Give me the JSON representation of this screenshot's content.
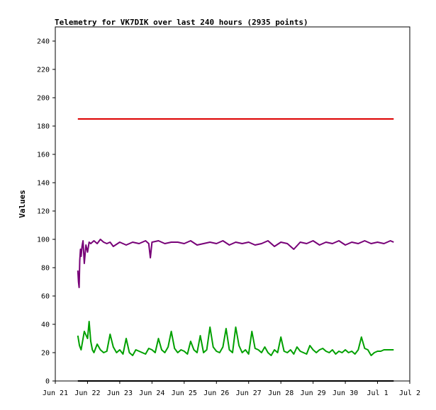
{
  "chart_data": {
    "type": "line",
    "title": "Telemetry for VK7DIK over last 240 hours (2935 points)",
    "xlabel": "",
    "ylabel": "Values",
    "ylim": [
      0,
      250
    ],
    "yticks": [
      0,
      20,
      40,
      60,
      80,
      100,
      120,
      140,
      160,
      180,
      200,
      220,
      240
    ],
    "xlim": [
      "Jun 21",
      "Jul 2"
    ],
    "xtick_labels": [
      "Jun 21",
      "Jun 22",
      "Jun 23",
      "Jun 24",
      "Jun 25",
      "Jun 26",
      "Jun 27",
      "Jun 28",
      "Jun 29",
      "Jun 30",
      "Jul 1",
      "Jul 2"
    ],
    "grid": false,
    "x_units": "days since Jun 21 00:00",
    "series": [
      {
        "color": "#dd0000",
        "x": [
          0.7,
          10.5
        ],
        "values": [
          185,
          185
        ]
      },
      {
        "color": "#770077",
        "x": [
          0.7,
          0.72,
          0.74,
          0.76,
          0.78,
          0.8,
          0.83,
          0.86,
          0.9,
          0.95,
          1.0,
          1.05,
          1.1,
          1.2,
          1.3,
          1.4,
          1.5,
          1.6,
          1.7,
          1.8,
          2.0,
          2.2,
          2.4,
          2.6,
          2.8,
          2.9,
          2.95,
          3.0,
          3.2,
          3.4,
          3.6,
          3.8,
          4.0,
          4.2,
          4.4,
          4.6,
          4.8,
          5.0,
          5.2,
          5.4,
          5.6,
          5.8,
          6.0,
          6.2,
          6.4,
          6.6,
          6.8,
          7.0,
          7.2,
          7.4,
          7.6,
          7.8,
          8.0,
          8.2,
          8.4,
          8.6,
          8.8,
          9.0,
          9.2,
          9.4,
          9.6,
          9.8,
          10.0,
          10.2,
          10.4,
          10.5
        ],
        "values": [
          78,
          70,
          66,
          85,
          93,
          88,
          95,
          99,
          83,
          96,
          91,
          98,
          97,
          99,
          97,
          100,
          98,
          97,
          98,
          95,
          98,
          96,
          98,
          97,
          99,
          97,
          87,
          98,
          99,
          97,
          98,
          98,
          97,
          99,
          96,
          97,
          98,
          97,
          99,
          96,
          98,
          97,
          98,
          96,
          97,
          99,
          95,
          98,
          97,
          93,
          98,
          97,
          99,
          96,
          98,
          97,
          99,
          96,
          98,
          97,
          99,
          97,
          98,
          97,
          99,
          98
        ]
      },
      {
        "color": "#00a000",
        "x": [
          0.7,
          0.75,
          0.8,
          0.9,
          1.0,
          1.05,
          1.1,
          1.15,
          1.2,
          1.3,
          1.4,
          1.5,
          1.6,
          1.7,
          1.8,
          1.9,
          2.0,
          2.1,
          2.2,
          2.3,
          2.4,
          2.5,
          2.6,
          2.7,
          2.8,
          2.9,
          3.0,
          3.1,
          3.2,
          3.3,
          3.4,
          3.5,
          3.6,
          3.7,
          3.8,
          3.9,
          4.0,
          4.1,
          4.2,
          4.3,
          4.4,
          4.5,
          4.6,
          4.7,
          4.8,
          4.9,
          5.0,
          5.1,
          5.2,
          5.3,
          5.4,
          5.5,
          5.6,
          5.7,
          5.8,
          5.9,
          6.0,
          6.1,
          6.2,
          6.3,
          6.4,
          6.5,
          6.6,
          6.7,
          6.8,
          6.9,
          7.0,
          7.1,
          7.2,
          7.3,
          7.4,
          7.5,
          7.6,
          7.7,
          7.8,
          7.9,
          8.0,
          8.1,
          8.2,
          8.3,
          8.4,
          8.5,
          8.6,
          8.7,
          8.8,
          8.9,
          9.0,
          9.1,
          9.2,
          9.3,
          9.4,
          9.5,
          9.6,
          9.7,
          9.8,
          9.9,
          10.0,
          10.1,
          10.2,
          10.3,
          10.4,
          10.5
        ],
        "values": [
          32,
          25,
          22,
          35,
          30,
          42,
          28,
          22,
          20,
          26,
          22,
          20,
          21,
          33,
          24,
          20,
          22,
          19,
          30,
          20,
          18,
          22,
          21,
          20,
          19,
          23,
          22,
          20,
          30,
          22,
          20,
          24,
          35,
          23,
          20,
          22,
          21,
          19,
          28,
          22,
          20,
          32,
          20,
          22,
          38,
          24,
          21,
          20,
          24,
          37,
          22,
          20,
          38,
          25,
          20,
          22,
          19,
          35,
          23,
          22,
          20,
          24,
          20,
          18,
          22,
          20,
          31,
          21,
          20,
          22,
          19,
          24,
          21,
          20,
          19,
          25,
          22,
          20,
          22,
          23,
          21,
          20,
          22,
          19,
          21,
          20,
          22,
          20,
          21,
          19,
          22,
          31,
          23,
          22,
          18,
          20,
          21,
          21,
          22,
          22,
          22,
          22
        ]
      },
      {
        "color": "#000000",
        "x": [
          0.7,
          10.5
        ],
        "values": [
          0,
          0
        ]
      }
    ]
  }
}
